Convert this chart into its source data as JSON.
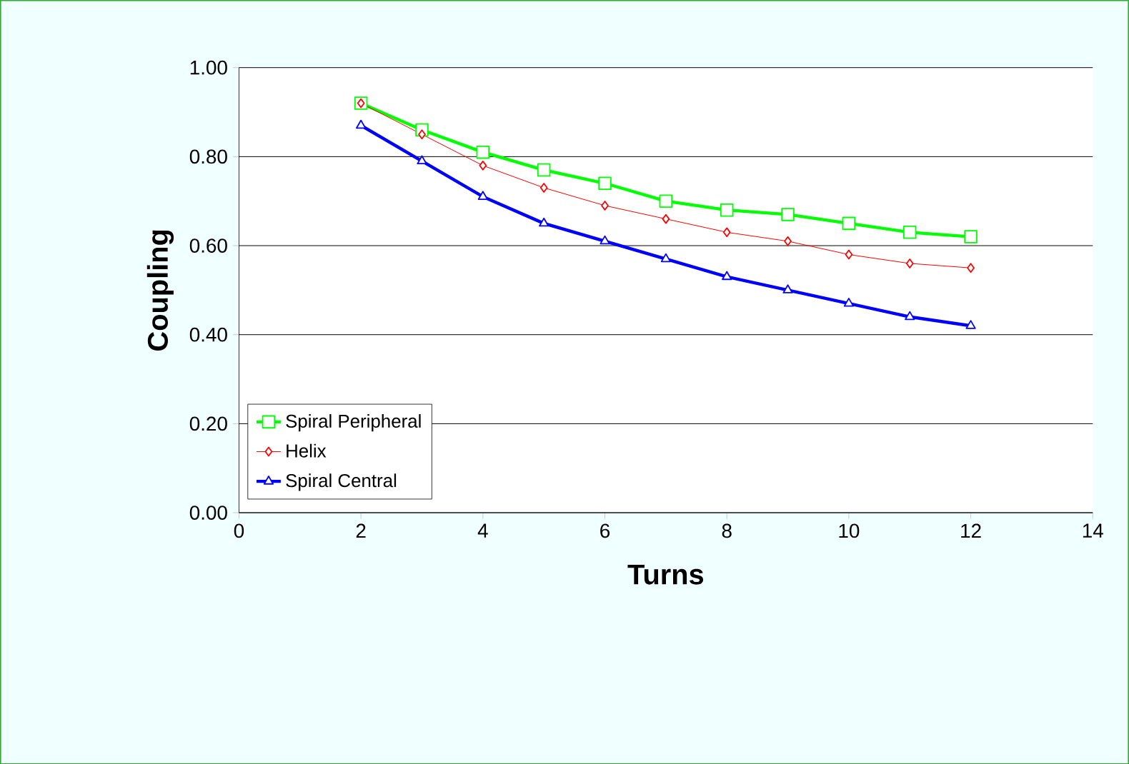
{
  "chart_data": {
    "type": "line",
    "xlabel": "Turns",
    "ylabel": "Coupling",
    "x": [
      2,
      3,
      4,
      5,
      6,
      7,
      8,
      9,
      10,
      11,
      12
    ],
    "series": [
      {
        "name": "Spiral Peripheral",
        "color": "#00ff00",
        "marker": "square",
        "values": [
          0.92,
          0.86,
          0.81,
          0.77,
          0.74,
          0.7,
          0.68,
          0.67,
          0.65,
          0.63,
          0.62
        ]
      },
      {
        "name": "Helix",
        "color": "#ff0000",
        "marker": "diamond",
        "values": [
          0.92,
          0.85,
          0.78,
          0.73,
          0.69,
          0.66,
          0.63,
          0.61,
          0.58,
          0.56,
          0.55
        ]
      },
      {
        "name": "Spiral Central",
        "color": "#0000ff",
        "marker": "triangle",
        "values": [
          0.87,
          0.79,
          0.71,
          0.65,
          0.61,
          0.57,
          0.53,
          0.5,
          0.47,
          0.44,
          0.42
        ]
      }
    ],
    "xlim": [
      0,
      14
    ],
    "xticks": [
      0,
      2,
      4,
      6,
      8,
      10,
      12,
      14
    ],
    "ylim": [
      0,
      1
    ],
    "yticks": [
      {
        "value": 0,
        "label": "0.00"
      },
      {
        "value": 0.2,
        "label": "0.20"
      },
      {
        "value": 0.4,
        "label": "0.40"
      },
      {
        "value": 0.6,
        "label": "0.60"
      },
      {
        "value": 0.8,
        "label": "0.80"
      },
      {
        "value": 1,
        "label": "1.00"
      }
    ],
    "grid": "y",
    "legend": "bottom left"
  }
}
